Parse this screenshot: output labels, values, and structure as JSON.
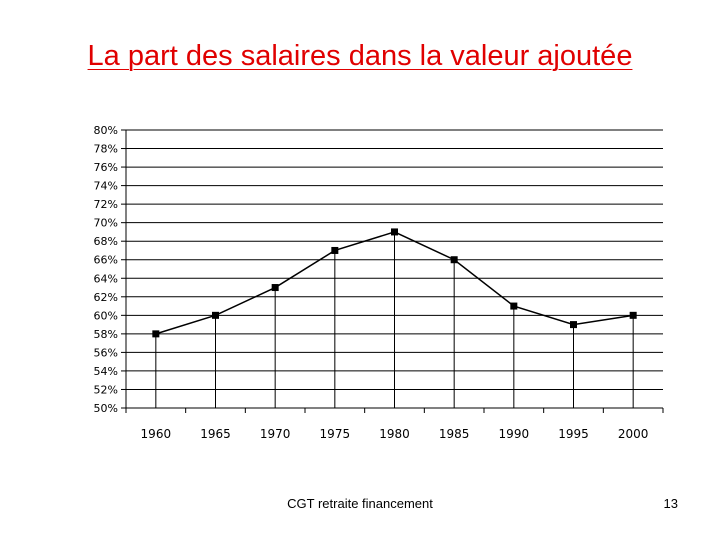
{
  "slide": {
    "title": "La part des salaires dans la valeur ajoutée",
    "footer": "CGT retraite financement",
    "page_number": "13"
  },
  "colors": {
    "title": "#e00000",
    "line": "#000000",
    "grid": "#000000"
  },
  "chart_data": {
    "type": "line",
    "title": "",
    "xlabel": "",
    "ylabel": "",
    "ylim": [
      0.5,
      0.8
    ],
    "y_ticks": [
      "80%",
      "78%",
      "76%",
      "74%",
      "72%",
      "70%",
      "68%",
      "66%",
      "64%",
      "62%",
      "60%",
      "58%",
      "56%",
      "54%",
      "52%",
      "50%"
    ],
    "categories": [
      "1960",
      "1965",
      "1970",
      "1975",
      "1980",
      "1985",
      "1990",
      "1995",
      "2000"
    ],
    "values": [
      0.58,
      0.6,
      0.63,
      0.67,
      0.69,
      0.66,
      0.61,
      0.59,
      0.6
    ],
    "grid": true,
    "drop_lines": true
  }
}
